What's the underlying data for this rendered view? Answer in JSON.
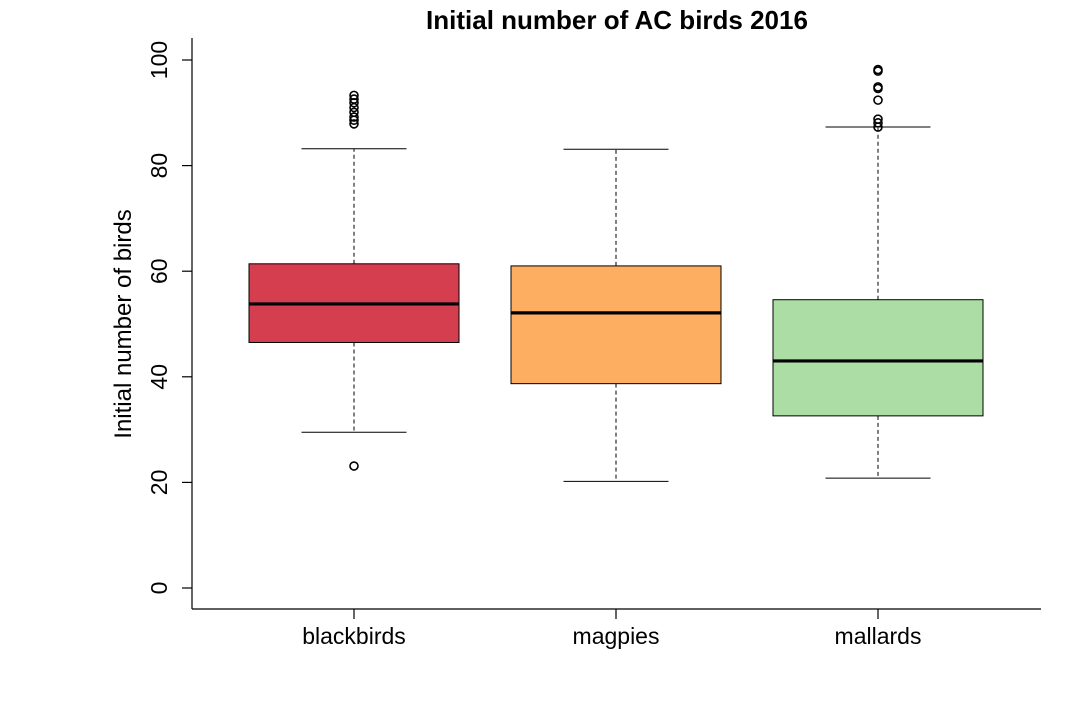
{
  "chart_data": {
    "type": "boxplot",
    "title": "Initial number of AC birds 2016",
    "xlabel": "",
    "ylabel": "Initial number of birds",
    "ylim": [
      0,
      100
    ],
    "yticks": [
      0,
      20,
      40,
      60,
      80,
      100
    ],
    "categories": [
      "blackbirds",
      "magpies",
      "mallards"
    ],
    "series": [
      {
        "name": "blackbirds",
        "color": "#D53E4F",
        "whisker_low": 29.5,
        "q1": 46.5,
        "median": 53.8,
        "q3": 61.4,
        "whisker_high": 83.2,
        "outliers": [
          23.1,
          87.9,
          88.6,
          89.2,
          90.1,
          91.0,
          91.9,
          92.6,
          93.3
        ]
      },
      {
        "name": "magpies",
        "color": "#FDAE61",
        "whisker_low": 20.2,
        "q1": 38.7,
        "median": 52.1,
        "q3": 61.0,
        "whisker_high": 83.1,
        "outliers": []
      },
      {
        "name": "mallards",
        "color": "#ABDDA4",
        "whisker_low": 20.8,
        "q1": 32.6,
        "median": 43.0,
        "q3": 54.6,
        "whisker_high": 87.3,
        "outliers": [
          87.3,
          88.1,
          88.8,
          92.4,
          94.6,
          94.9,
          97.9,
          98.2
        ]
      }
    ]
  }
}
